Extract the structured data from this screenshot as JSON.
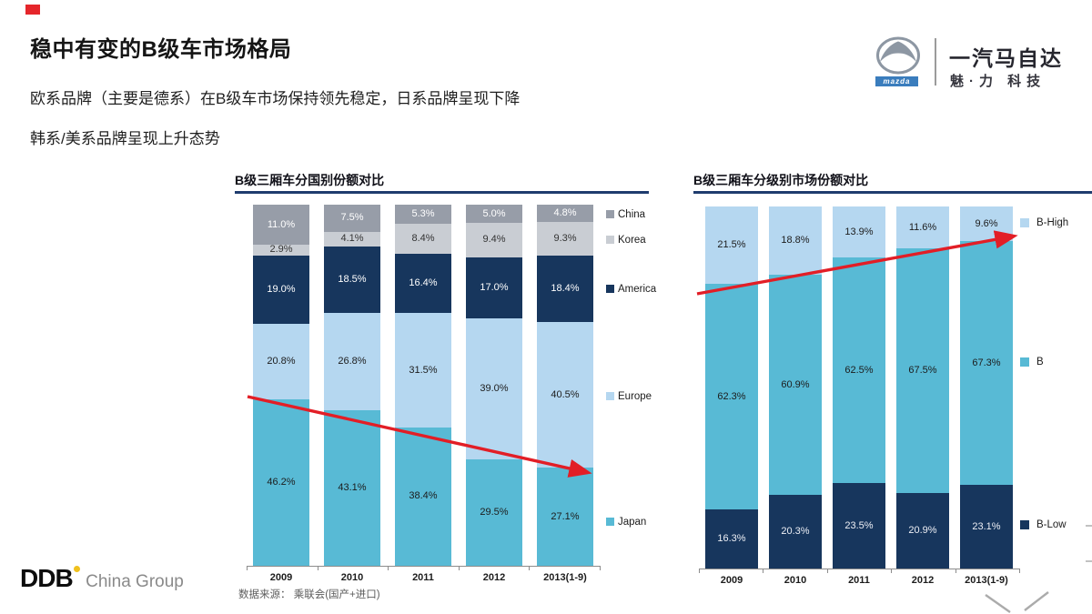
{
  "header": {
    "title": "稳中有变的B级车市场格局",
    "subtitle_line1": "欧系品牌（主要是德系）在B级车市场保持领先稳定，日系品牌呈现下降",
    "subtitle_line2": "韩系/美系品牌呈现上升态势"
  },
  "logo": {
    "wordmark": "mazda",
    "company": "一汽马自达",
    "tagline": "魅·力 科技"
  },
  "footer": {
    "brand_bold": "DDB",
    "brand_rest": "China Group",
    "source_note": "数据来源： 乘联会(国产+进口)"
  },
  "colors": {
    "accent_red": "#E21E26",
    "navy": "#17365D",
    "cyan": "#58BAD5",
    "light_blue": "#B5D7F0",
    "gray_dark": "#979DA8",
    "gray_light": "#C9CDD3",
    "title_rule": "#1F3C6E",
    "gold_dot": "#F0C11E",
    "mazda_blue": "#3A7DBD"
  },
  "chart_data": [
    {
      "type": "bar",
      "stacked": true,
      "title": "B级三厢车分国别份额对比",
      "categories": [
        "2009",
        "2010",
        "2011",
        "2012",
        "2013(1-9)"
      ],
      "series": [
        {
          "name": "Japan",
          "color": "#58BAD5",
          "label_color": "#1c1c1c",
          "values": [
            46.2,
            43.1,
            38.4,
            29.5,
            27.1
          ]
        },
        {
          "name": "Europe",
          "color": "#B5D7F0",
          "label_color": "#1c1c1c",
          "values": [
            20.8,
            26.8,
            31.5,
            39.0,
            40.5
          ]
        },
        {
          "name": "America",
          "color": "#17365D",
          "label_color": "#ffffff",
          "values": [
            19.0,
            18.5,
            16.4,
            17.0,
            18.4
          ]
        },
        {
          "name": "Korea",
          "color": "#C9CDD3",
          "label_color": "#333333",
          "values": [
            2.9,
            4.1,
            8.4,
            9.4,
            9.3
          ]
        },
        {
          "name": "China",
          "color": "#979DA8",
          "label_color": "#ffffff",
          "values": [
            11.0,
            7.5,
            5.3,
            5.0,
            4.8
          ]
        }
      ],
      "legend": [
        "China",
        "Korea",
        "America",
        "Europe",
        "Japan"
      ],
      "legend_position": "right",
      "ylim": [
        0,
        100
      ],
      "grid": false,
      "annotation": "red downward trend arrow across Japan share"
    },
    {
      "type": "bar",
      "stacked": true,
      "title": "B级三厢车分级别市场份额对比",
      "categories": [
        "2009",
        "2010",
        "2011",
        "2012",
        "2013(1-9)"
      ],
      "series": [
        {
          "name": "B-Low",
          "color": "#17365D",
          "label_color": "#EDEFF5",
          "values": [
            16.3,
            20.3,
            23.5,
            20.9,
            23.1
          ]
        },
        {
          "name": "B",
          "color": "#58BAD5",
          "label_color": "#1c1c1c",
          "values": [
            62.3,
            60.9,
            62.5,
            67.5,
            67.3
          ]
        },
        {
          "name": "B-High",
          "color": "#B5D7F0",
          "label_color": "#1c1c1c",
          "values": [
            21.5,
            18.8,
            13.9,
            11.6,
            9.6
          ]
        }
      ],
      "legend": [
        "B-High",
        "B",
        "B-Low"
      ],
      "legend_position": "right",
      "ylim": [
        0,
        100
      ],
      "grid": false,
      "annotation": "red upward trend arrow across B-High share"
    }
  ]
}
